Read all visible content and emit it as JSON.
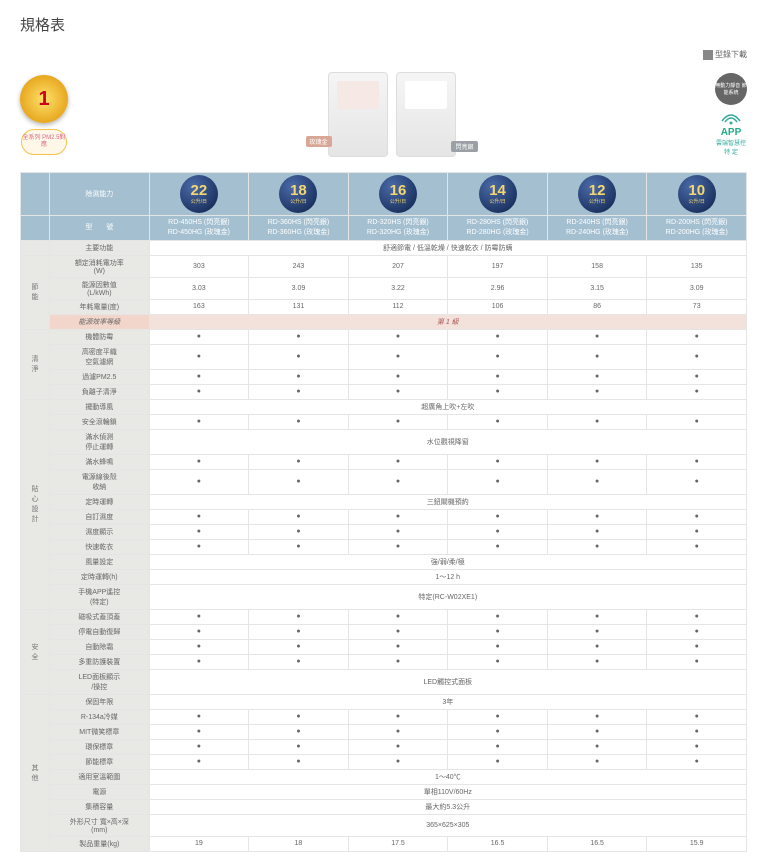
{
  "page": {
    "title": "規格表",
    "download_label": "型錄下載"
  },
  "hero": {
    "energy_badge": "全系列\n能源效率\n第 級",
    "pm25_badge": "全系列\nPM2.5對應",
    "device1_label": "玫瑰金",
    "device2_label": "閃亮銀",
    "quiet_badge": "無動力靜音\n節能系統",
    "app_label_big": "APP",
    "app_label_sub": "雲端智慧控\n特 定"
  },
  "columns": {
    "cap_label": "除濕能力",
    "model_label": "型　　號",
    "capacities": [
      "22",
      "18",
      "16",
      "14",
      "12",
      "10"
    ],
    "cap_unit": "公升/日",
    "models": [
      "RD-450HS (閃亮銀)\nRD-450HG (玫瑰金)",
      "RD-360HS (閃亮銀)\nRD-360HG (玫瑰金)",
      "RD-320HS (閃亮銀)\nRD-320HG (玫瑰金)",
      "RD-280HS (閃亮銀)\nRD-280HG (玫瑰金)",
      "RD-240HS (閃亮銀)\nRD-240HG (玫瑰金)",
      "RD-200HS (閃亮銀)\nRD-200HG (玫瑰金)"
    ]
  },
  "sections": [
    {
      "side": "",
      "rows": [
        {
          "label": "主要功能",
          "type": "merged",
          "value": "舒適節電 / 低溫乾燥 / 快速乾衣 / 防霉防螨"
        }
      ]
    },
    {
      "side": "節能",
      "rows": [
        {
          "label": "額定消耗電功率\n(W)",
          "type": "vals",
          "values": [
            "303",
            "243",
            "207",
            "197",
            "158",
            "135"
          ]
        },
        {
          "label": "能源因數值\n(L/kWh)",
          "type": "vals",
          "values": [
            "3.03",
            "3.09",
            "3.22",
            "2.96",
            "3.15",
            "3.09"
          ]
        },
        {
          "label": "年耗電量(度)",
          "type": "vals",
          "values": [
            "163",
            "131",
            "112",
            "106",
            "86",
            "73"
          ]
        },
        {
          "label": "能源效率等級",
          "type": "pink",
          "value": "第 1 級"
        }
      ]
    },
    {
      "side": "清淨",
      "rows": [
        {
          "label": "機體防霉",
          "type": "dots"
        },
        {
          "label": "高密度平織\n空氣濾網",
          "type": "dots"
        },
        {
          "label": "過濾PM2.5",
          "type": "dots"
        },
        {
          "label": "負離子清淨",
          "type": "dots"
        }
      ]
    },
    {
      "side": "貼心設計",
      "rows": [
        {
          "label": "擺動導風",
          "type": "merged",
          "value": "超廣角上吹+左吹"
        },
        {
          "label": "安全滾輪鎖",
          "type": "dots"
        },
        {
          "label": "滿水偵測\n停止運轉",
          "type": "merged",
          "value": "水位觀視降窗"
        },
        {
          "label": "滿水蜂鳴",
          "type": "dots"
        },
        {
          "label": "電源線後殼\n收納",
          "type": "dots"
        },
        {
          "label": "定時運轉",
          "type": "merged",
          "value": "三鈕關機預約"
        },
        {
          "label": "自訂濕度",
          "type": "dots"
        },
        {
          "label": "濕度顯示",
          "type": "dots"
        },
        {
          "label": "快速乾衣",
          "type": "dots"
        },
        {
          "label": "風量設定",
          "type": "merged",
          "value": "強/弱/柔/極"
        },
        {
          "label": "定時運轉(h)",
          "type": "merged",
          "value": "1～12 h"
        },
        {
          "label": "手機APP遙控\n(特定)",
          "type": "merged",
          "value": "特定(RC-W02XE1)"
        }
      ]
    },
    {
      "side": "安全",
      "rows": [
        {
          "label": "磁吸式蓋頂蓋",
          "type": "dots"
        },
        {
          "label": "停電自動復歸",
          "type": "dots"
        },
        {
          "label": "自動除霜",
          "type": "dots"
        },
        {
          "label": "多重防護裝置",
          "type": "dots"
        },
        {
          "label": "LED面板顯示\n/操控",
          "type": "merged",
          "value": "LED觸控式面板"
        }
      ]
    },
    {
      "side": "其他",
      "rows": [
        {
          "label": "保固年限",
          "type": "merged",
          "value": "3年"
        },
        {
          "label": "R-134a冷媒",
          "type": "dots"
        },
        {
          "label": "MIT微笑標章",
          "type": "dots"
        },
        {
          "label": "環保標章",
          "type": "dots"
        },
        {
          "label": "節能標章",
          "type": "dots"
        },
        {
          "label": "適用室溫範圍",
          "type": "merged",
          "value": "1～40℃"
        },
        {
          "label": "電源",
          "type": "merged",
          "value": "單相110V/60Hz"
        },
        {
          "label": "集積容量",
          "type": "merged",
          "value": "最大約5.3公升"
        },
        {
          "label": "外形尺寸 寬×高×深\n(mm)",
          "type": "merged",
          "value": "365×625×305"
        },
        {
          "label": "製品重量(kg)",
          "type": "vals",
          "values": [
            "19",
            "18",
            "17.5",
            "16.5",
            "16.5",
            "15.9"
          ]
        }
      ]
    }
  ]
}
